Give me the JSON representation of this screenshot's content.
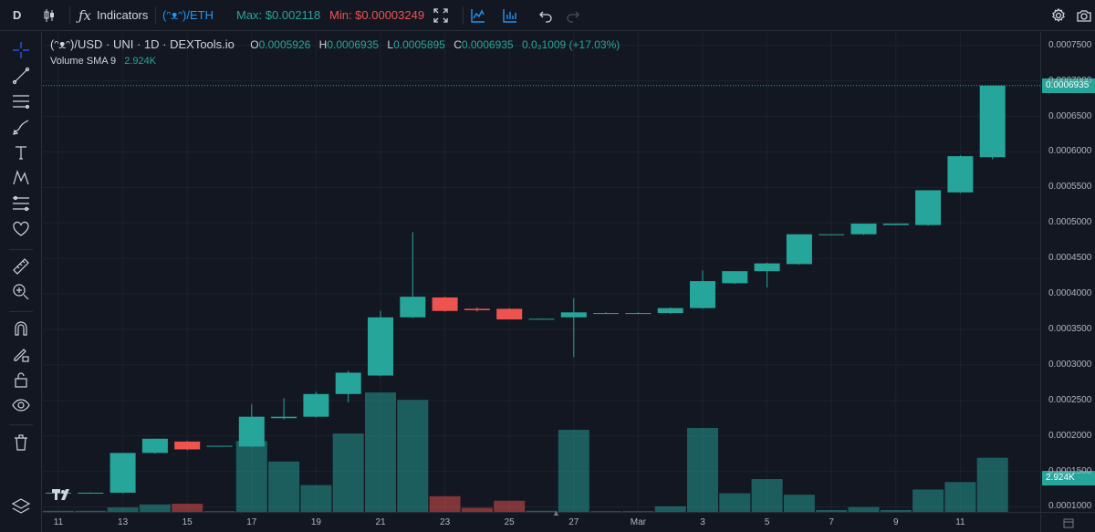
{
  "toolbar": {
    "interval": "D",
    "indicators_label": "Indicators",
    "symbol": "(ᵔᴥᵔ)/ETH",
    "max": "Max: $0.002118",
    "min": "Min: $0.00003249"
  },
  "legend": {
    "pair": "(ᵔᴥᵔ)/USD · UNI · 1D · DEXTools.io",
    "o_key": "O",
    "o": "0.0005926",
    "h_key": "H",
    "h": "0.0006935",
    "l_key": "L",
    "l": "0.0005895",
    "c_key": "C",
    "c": "0.0006935",
    "change": "0.0₃1009 (+17.03%)",
    "volume_label": "Volume SMA 9",
    "volume_value": "2.924K"
  },
  "price_tags": {
    "last_price": "0.0006935",
    "volume": "2.924K"
  },
  "colors": {
    "up": "#26a69a",
    "down": "#ef5350",
    "background": "#131722",
    "grid": "#1e222d"
  },
  "chart_data": {
    "type": "candlestick",
    "x_tick_labels": [
      "11",
      "13",
      "15",
      "17",
      "19",
      "21",
      "23",
      "25",
      "27",
      "Mar",
      "3",
      "5",
      "7",
      "9",
      "11"
    ],
    "y_tick_labels": [
      "0.0007500",
      "0.0007000",
      "0.0006500",
      "0.0006000",
      "0.0005500",
      "0.0005000",
      "0.0004500",
      "0.0004000",
      "0.0003500",
      "0.0003000",
      "0.0002500",
      "0.0002000",
      "0.0001500",
      "0.0001000"
    ],
    "ylim": [
      9.29e-05,
      0.000769
    ],
    "candles": [
      {
        "o": 0.0001195,
        "h": 0.00012,
        "l": 0.000119,
        "c": 0.00012,
        "v": 0.03
      },
      {
        "o": 0.00012,
        "h": 0.0001205,
        "l": 0.0001195,
        "c": 0.00012,
        "v": 0.03
      },
      {
        "o": 0.00012,
        "h": 0.000175,
        "l": 0.000119,
        "c": 0.000176,
        "v": 0.12
      },
      {
        "o": 0.000176,
        "h": 0.000196,
        "l": 0.000175,
        "c": 0.000196,
        "v": 0.2
      },
      {
        "o": 0.000192,
        "h": 0.000193,
        "l": 0.00018,
        "c": 0.000181,
        "v": 0.22
      },
      {
        "o": 0.000185,
        "h": 0.000186,
        "l": 0.000185,
        "c": 0.000186,
        "v": 0.02
      },
      {
        "o": 0.000185,
        "h": 0.000245,
        "l": 0.000184,
        "c": 0.000227,
        "v": 1.9
      },
      {
        "o": 0.000225,
        "h": 0.000253,
        "l": 0.000223,
        "c": 0.000227,
        "v": 1.35
      },
      {
        "o": 0.000227,
        "h": 0.000262,
        "l": 0.000226,
        "c": 0.000259,
        "v": 0.72
      },
      {
        "o": 0.000259,
        "h": 0.000292,
        "l": 0.000247,
        "c": 0.000289,
        "v": 2.1
      },
      {
        "o": 0.000285,
        "h": 0.000376,
        "l": 0.000284,
        "c": 0.000367,
        "v": 3.2
      },
      {
        "o": 0.000367,
        "h": 0.000487,
        "l": 0.000366,
        "c": 0.000396,
        "v": 3.0
      },
      {
        "o": 0.000395,
        "h": 0.000396,
        "l": 0.000375,
        "c": 0.000376,
        "v": 0.42
      },
      {
        "o": 0.000379,
        "h": 0.000381,
        "l": 0.000375,
        "c": 0.000377,
        "v": 0.11
      },
      {
        "o": 0.000379,
        "h": 0.00038,
        "l": 0.000364,
        "c": 0.000364,
        "v": 0.3
      },
      {
        "o": 0.000364,
        "h": 0.000365,
        "l": 0.000364,
        "c": 0.000365,
        "v": 0.03
      },
      {
        "o": 0.000367,
        "h": 0.000394,
        "l": 0.000311,
        "c": 0.000374,
        "v": 2.2
      },
      {
        "o": 0.000373,
        "h": 0.000374,
        "l": 0.000372,
        "c": 0.000373,
        "v": 0.02
      },
      {
        "o": 0.000373,
        "h": 0.000374,
        "l": 0.000372,
        "c": 0.000373,
        "v": 0.02
      },
      {
        "o": 0.000373,
        "h": 0.000381,
        "l": 0.000372,
        "c": 0.00038,
        "v": 0.15
      },
      {
        "o": 0.00038,
        "h": 0.000433,
        "l": 0.000379,
        "c": 0.000418,
        "v": 2.25
      },
      {
        "o": 0.000415,
        "h": 0.000432,
        "l": 0.000414,
        "c": 0.000432,
        "v": 0.5
      },
      {
        "o": 0.000432,
        "h": 0.000444,
        "l": 0.000409,
        "c": 0.000443,
        "v": 0.88
      },
      {
        "o": 0.000442,
        "h": 0.000484,
        "l": 0.000441,
        "c": 0.000484,
        "v": 0.46
      },
      {
        "o": 0.000483,
        "h": 0.000484,
        "l": 0.000483,
        "c": 0.000484,
        "v": 0.05
      },
      {
        "o": 0.000484,
        "h": 0.000499,
        "l": 0.000483,
        "c": 0.000499,
        "v": 0.13
      },
      {
        "o": 0.000497,
        "h": 0.000499,
        "l": 0.000497,
        "c": 0.000499,
        "v": 0.05
      },
      {
        "o": 0.000497,
        "h": 0.000546,
        "l": 0.000496,
        "c": 0.000546,
        "v": 0.6
      },
      {
        "o": 0.000543,
        "h": 0.000595,
        "l": 0.000542,
        "c": 0.000594,
        "v": 0.8
      },
      {
        "o": 0.0005926,
        "h": 0.0006935,
        "l": 0.0005895,
        "c": 0.0006935,
        "v": 1.45
      }
    ],
    "volume_max": 3.3
  }
}
